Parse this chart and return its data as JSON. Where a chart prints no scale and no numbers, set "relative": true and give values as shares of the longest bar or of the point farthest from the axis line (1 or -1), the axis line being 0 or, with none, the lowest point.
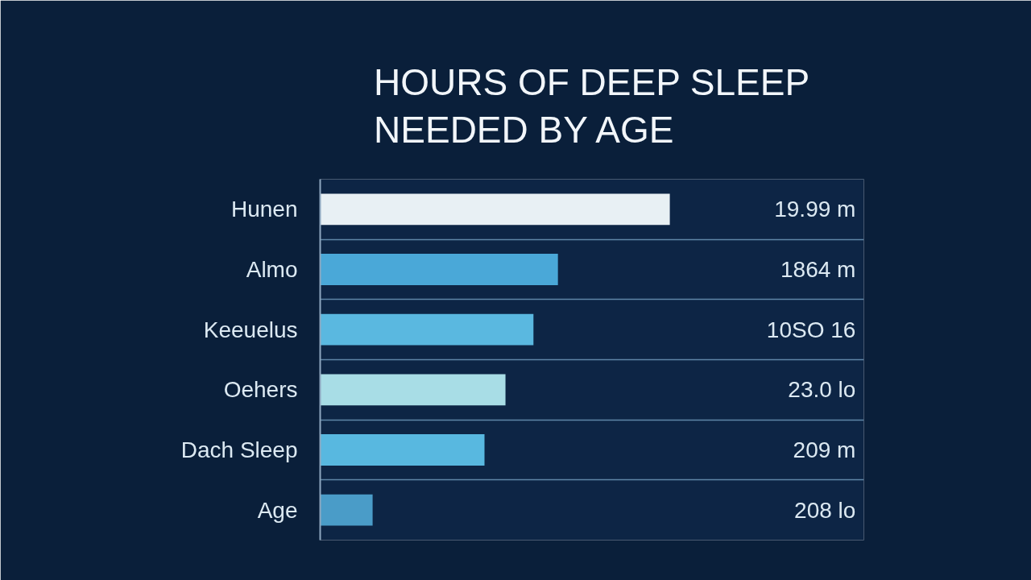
{
  "chart_data": {
    "type": "bar",
    "orientation": "horizontal",
    "relative": true,
    "title": "HOURS OF DEEP SLEEP\nNEEDED BY AGE",
    "categories": [
      "Hunen",
      "Almo",
      "Keeuelus",
      "Oehers",
      "Dach Sleep",
      "Age"
    ],
    "values": [
      1,
      0.68,
      0.61,
      0.53,
      0.47,
      0.15
    ],
    "colors": [
      "#e8f0f4",
      "#4aa8d8",
      "#5ab8e0",
      "#a8dde6",
      "#58b8e0",
      "#4a9cc8"
    ],
    "annotations": [
      "19.99 m",
      "1864 m",
      "10SO 16",
      "23.0 lo",
      "209 m",
      "208 lo"
    ],
    "grid": "y"
  }
}
